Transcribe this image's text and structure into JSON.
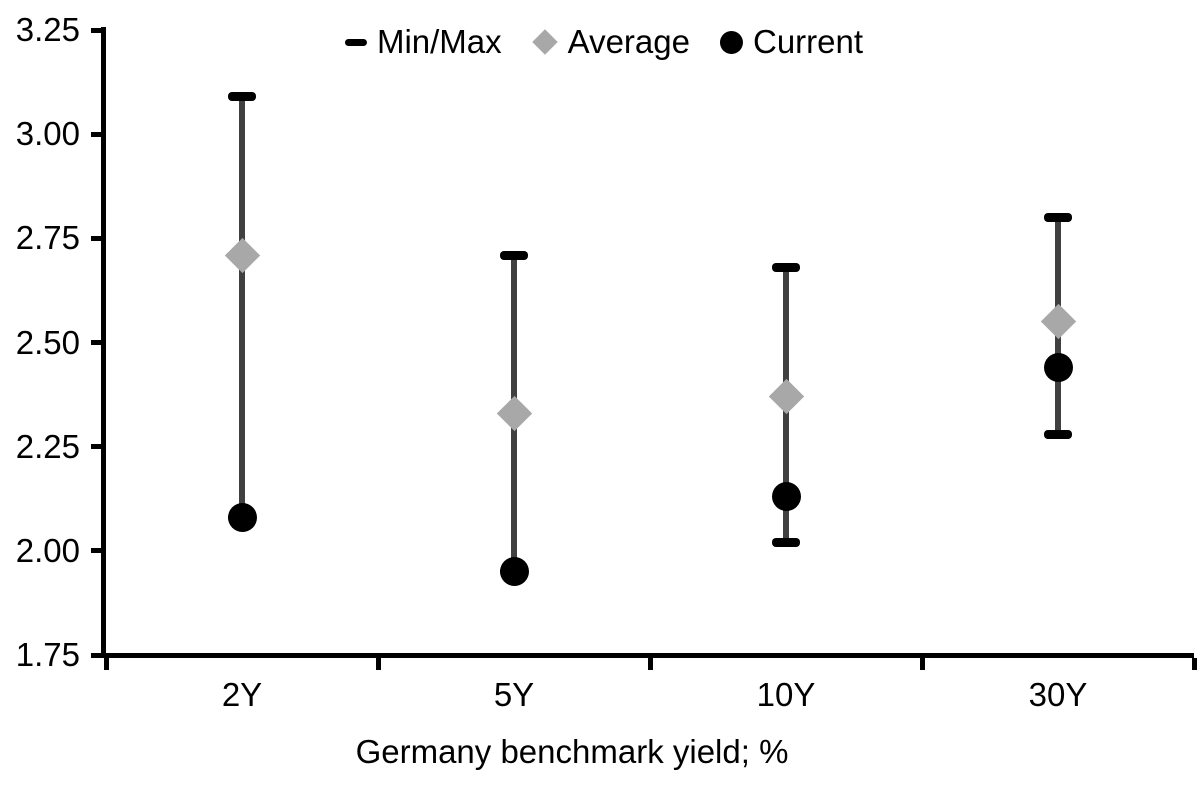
{
  "chart_data": {
    "type": "scatter",
    "subtype": "min-max-range",
    "title": "",
    "xlabel": "Germany benchmark yield; %",
    "ylabel": "",
    "categories": [
      "2Y",
      "5Y",
      "10Y",
      "30Y"
    ],
    "ylim": [
      1.75,
      3.25
    ],
    "y_tick_labels": [
      "3.25",
      "3.00",
      "2.75",
      "2.50",
      "2.25",
      "2.00",
      "1.75"
    ],
    "y_tick_values": [
      3.25,
      3.0,
      2.75,
      2.5,
      2.25,
      2.0,
      1.75
    ],
    "grid": false,
    "legend_position": "top-center",
    "legend": [
      {
        "label": "Min/Max",
        "marker": "dash",
        "color": "#000000"
      },
      {
        "label": "Average",
        "marker": "diamond",
        "color": "#a8a8a8"
      },
      {
        "label": "Current",
        "marker": "circle",
        "color": "#000000"
      }
    ],
    "series": [
      {
        "name": "Min/Max",
        "type": "range",
        "min": [
          2.08,
          1.95,
          2.02,
          2.28
        ],
        "max": [
          3.09,
          2.71,
          2.68,
          2.8
        ]
      },
      {
        "name": "Average",
        "type": "point",
        "marker": "diamond",
        "values": [
          2.71,
          2.33,
          2.37,
          2.55
        ]
      },
      {
        "name": "Current",
        "type": "point",
        "marker": "circle",
        "values": [
          2.08,
          1.95,
          2.13,
          2.44
        ]
      }
    ],
    "colors": {
      "range_line": "#404040",
      "range_cap": "#000000",
      "average_marker": "#a8a8a8",
      "current_marker": "#000000",
      "axis": "#000000",
      "text": "#000000",
      "background": "#ffffff"
    }
  }
}
